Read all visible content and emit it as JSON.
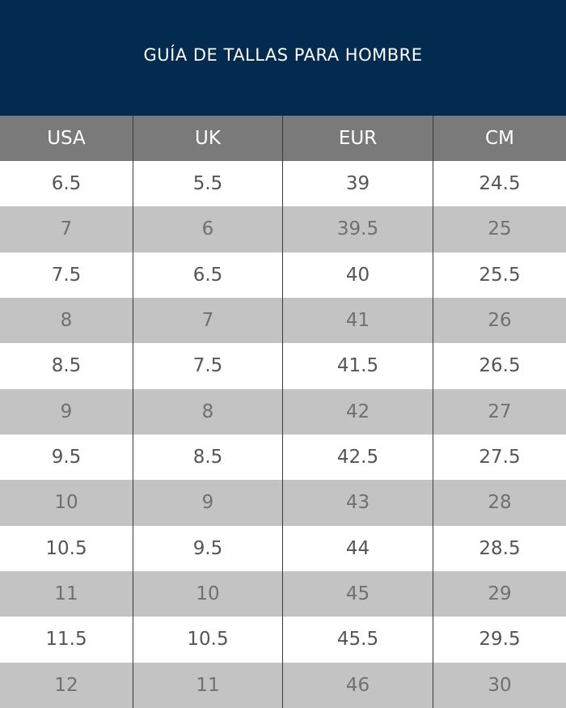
{
  "header": {
    "title": "GUÍA DE TALLAS PARA HOMBRE"
  },
  "table": {
    "columns": [
      "USA",
      "UK",
      "EUR",
      "CM"
    ],
    "rows": [
      [
        "6.5",
        "5.5",
        "39",
        "24.5"
      ],
      [
        "7",
        "6",
        "39.5",
        "25"
      ],
      [
        "7.5",
        "6.5",
        "40",
        "25.5"
      ],
      [
        "8",
        "7",
        "41",
        "26"
      ],
      [
        "8.5",
        "7.5",
        "41.5",
        "26.5"
      ],
      [
        "9",
        "8",
        "42",
        "27"
      ],
      [
        "9.5",
        "8.5",
        "42.5",
        "27.5"
      ],
      [
        "10",
        "9",
        "43",
        "28"
      ],
      [
        "10.5",
        "9.5",
        "44",
        "28.5"
      ],
      [
        "11",
        "10",
        "45",
        "29"
      ],
      [
        "11.5",
        "10.5",
        "45.5",
        "29.5"
      ],
      [
        "12",
        "11",
        "46",
        "30"
      ]
    ]
  }
}
